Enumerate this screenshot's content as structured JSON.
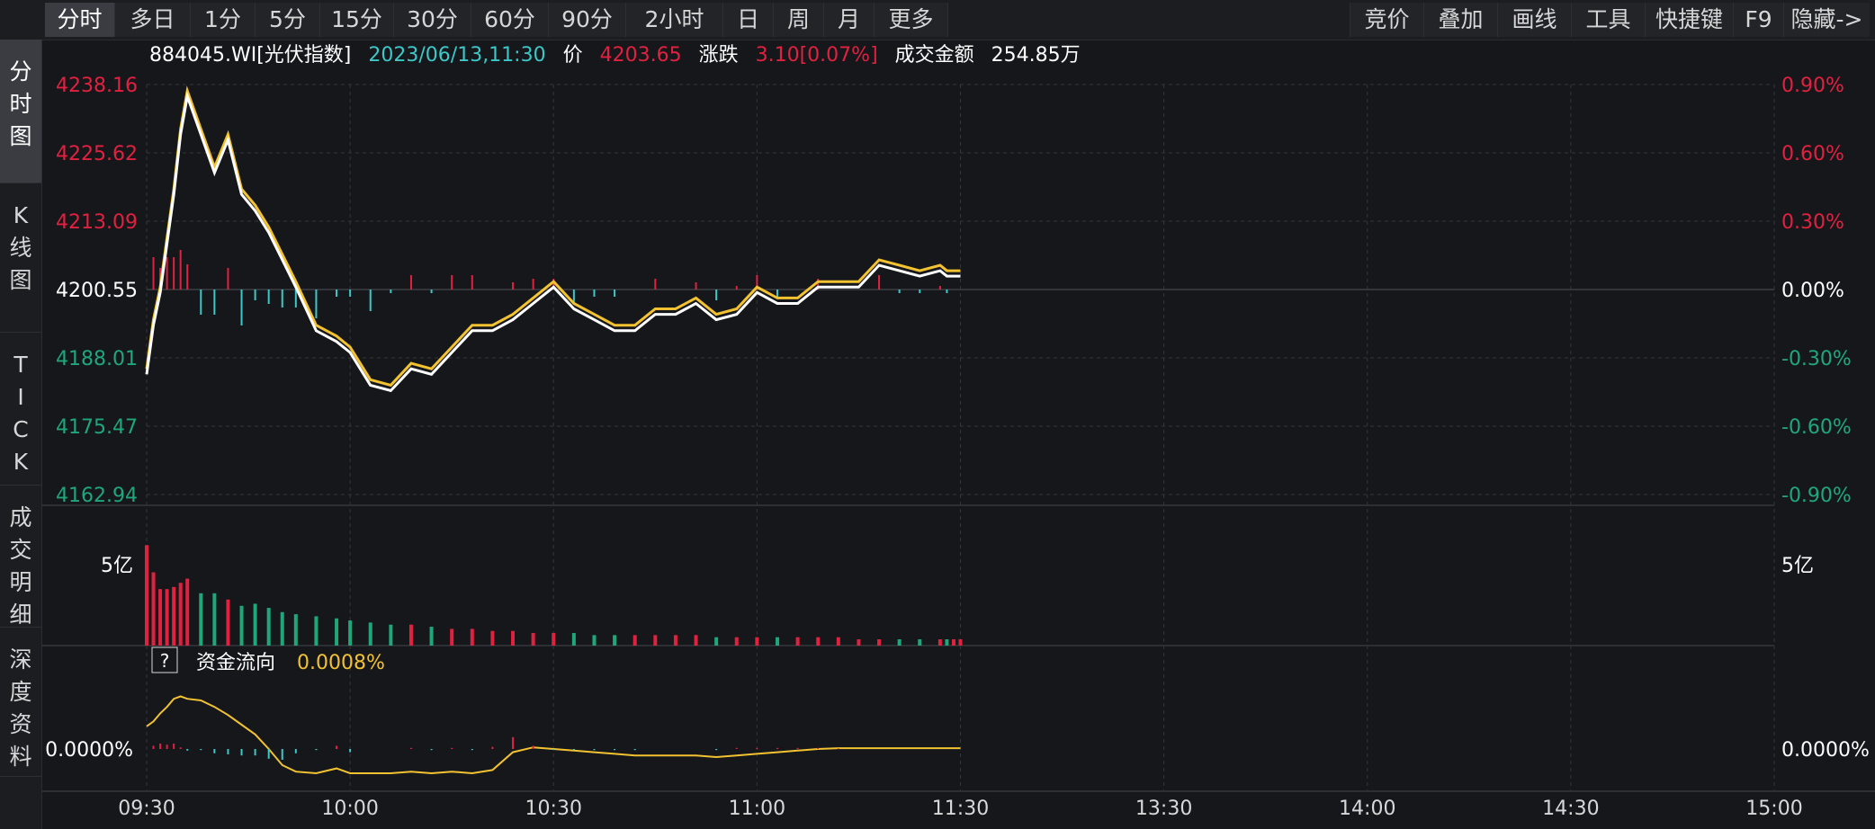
{
  "toolbar": {
    "tabs": [
      "分时",
      "多日",
      "1分",
      "5分",
      "15分",
      "30分",
      "60分",
      "90分",
      "2小时",
      "日",
      "周",
      "月",
      "更多"
    ],
    "right": [
      "竞价",
      "叠加",
      "画线",
      "工具",
      "快捷键",
      "F9",
      "隐藏->"
    ]
  },
  "sidebar": {
    "items": [
      "分\n时\n图",
      "K\n线\n图",
      "T\nI\nC\nK",
      "成\n交\n明\n细",
      "深\n度\n资\n料"
    ]
  },
  "info": {
    "code": "884045.WI[光伏指数]",
    "datetime": "2023/06/13,11:30",
    "price_label": "价",
    "price": "4203.65",
    "change_label": "涨跌",
    "change": "3.10[0.07%]",
    "amount_label": "成交金额",
    "amount": "254.85万"
  },
  "colors": {
    "up": "#e0213f",
    "down": "#1fa779",
    "price_line": "#ffffff",
    "avg_line": "#f2c230",
    "cyan": "#3cc8c8",
    "grid": "#34353b"
  },
  "chart_data": [
    {
      "type": "line",
      "name": "分时",
      "y_labels_left": [
        "4238.16",
        "4225.62",
        "4213.09",
        "4200.55",
        "4188.01",
        "4175.47",
        "4162.94"
      ],
      "y_labels_right": [
        "0.90%",
        "0.60%",
        "0.30%",
        "0.00%",
        "-0.30%",
        "-0.60%",
        "-0.90%"
      ],
      "ylim": [
        4162.94,
        4238.16
      ],
      "base": 4200.55,
      "x_ticks": [
        "09:30",
        "10:00",
        "10:30",
        "11:00",
        "11:30",
        "13:30",
        "14:00",
        "14:30",
        "15:00"
      ],
      "x": [
        0,
        1,
        2,
        3,
        4,
        5,
        6,
        8,
        10,
        12,
        14,
        16,
        18,
        20,
        22,
        25,
        28,
        30,
        33,
        36,
        39,
        42,
        45,
        48,
        51,
        54,
        57,
        60,
        63,
        66,
        69,
        72,
        75,
        78,
        81,
        84,
        87,
        90,
        93,
        96,
        99,
        102,
        105,
        108,
        111,
        114,
        117,
        118,
        119,
        120
      ],
      "series": [
        {
          "name": "价格",
          "values": [
            4185,
            4194,
            4200,
            4209,
            4218,
            4229,
            4236,
            4229,
            4222,
            4228,
            4218,
            4215,
            4211,
            4206,
            4201,
            4193,
            4191,
            4189,
            4183,
            4182,
            4186,
            4185,
            4189,
            4193,
            4193,
            4195,
            4198,
            4201,
            4197,
            4195,
            4193,
            4193,
            4196,
            4196,
            4198,
            4195,
            4196,
            4200,
            4198,
            4198,
            4201,
            4201,
            4201,
            4205,
            4204,
            4203,
            4204,
            4203,
            4203,
            4203
          ]
        },
        {
          "name": "均价",
          "values": [
            4186,
            4195,
            4201,
            4210,
            4219,
            4230,
            4237,
            4230,
            4223,
            4229,
            4219,
            4216,
            4212,
            4207,
            4202,
            4194,
            4192,
            4190,
            4184,
            4183,
            4187,
            4186,
            4190,
            4194,
            4194,
            4196,
            4199,
            4202,
            4198,
            4196,
            4194,
            4194,
            4197,
            4197,
            4199,
            4196,
            4197,
            4201,
            4199,
            4199,
            4202,
            4202,
            4202,
            4206,
            4205,
            4204,
            4205,
            4204,
            4204,
            4204
          ]
        }
      ]
    },
    {
      "type": "bar",
      "name": "成交额",
      "y_label": "5亿",
      "values": [
        4.8,
        3.5,
        2.7,
        2.7,
        2.8,
        3.0,
        3.2,
        2.5,
        2.5,
        2.2,
        1.9,
        2.0,
        1.8,
        1.6,
        1.5,
        1.4,
        1.3,
        1.2,
        1.1,
        1.0,
        1.0,
        0.9,
        0.8,
        0.8,
        0.7,
        0.7,
        0.6,
        0.6,
        0.6,
        0.5,
        0.5,
        0.5,
        0.5,
        0.5,
        0.5,
        0.4,
        0.4,
        0.4,
        0.4,
        0.4,
        0.4,
        0.4,
        0.3,
        0.3,
        0.3,
        0.3,
        0.3,
        0.3,
        0.3,
        0.3
      ]
    },
    {
      "type": "line",
      "name": "资金流向",
      "title": "资金流向",
      "value": "0.0008%",
      "help_label": "?",
      "y_label": "0.0000%",
      "values": [
        0.28,
        0.34,
        0.44,
        0.52,
        0.62,
        0.65,
        0.62,
        0.6,
        0.52,
        0.42,
        0.3,
        0.18,
        0.0,
        -0.2,
        -0.28,
        -0.3,
        -0.24,
        -0.3,
        -0.3,
        -0.3,
        -0.28,
        -0.3,
        -0.28,
        -0.3,
        -0.26,
        -0.04,
        0.02,
        0.0,
        -0.02,
        -0.04,
        -0.06,
        -0.08,
        -0.08,
        -0.08,
        -0.08,
        -0.1,
        -0.08,
        -0.06,
        -0.04,
        -0.02,
        0.0,
        0.01,
        0.01,
        0.01,
        0.01,
        0.01,
        0.01,
        0.01,
        0.01,
        0.01
      ]
    }
  ]
}
